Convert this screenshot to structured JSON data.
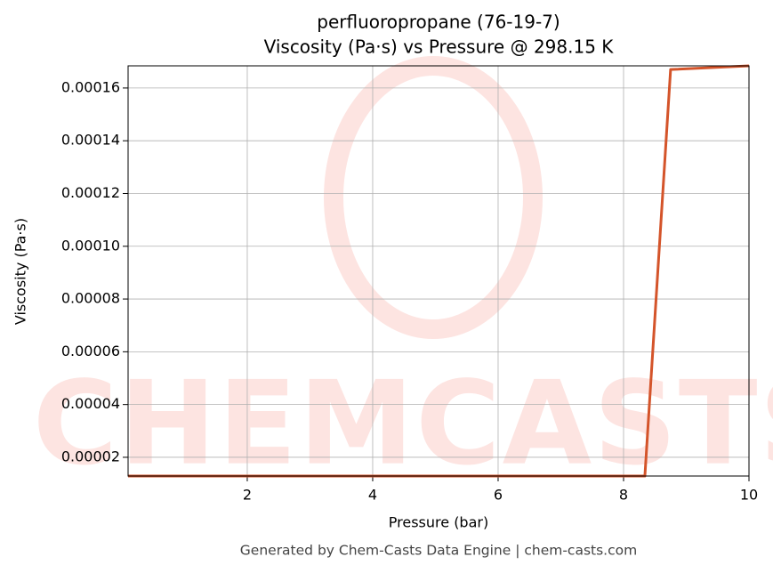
{
  "chart_data": {
    "type": "line",
    "title": "perfluoropropane (76-19-7)",
    "subtitle": "Viscosity (Pa·s) vs Pressure @ 298.15 K",
    "x_label": "Pressure (bar)",
    "y_label": "Viscosity (Pa·s)",
    "footer": "Generated by Chem-Casts Data Engine | chem-casts.com",
    "watermark": "CHEMCASTS",
    "x": [
      0.1,
      8.34,
      8.75,
      10
    ],
    "series": [
      {
        "name": "Viscosity",
        "color": "#d4542a",
        "values": [
          1.29e-05,
          1.29e-05,
          0.000167,
          0.0001684
        ]
      }
    ],
    "xlim": [
      0.1,
      10
    ],
    "ylim": [
      1.29e-05,
      0.0001684
    ],
    "xticks": [
      2,
      4,
      6,
      8,
      10
    ],
    "yticks": [
      2e-05,
      4e-05,
      6e-05,
      8e-05,
      {
        "value": 0.0001,
        "label": "0.00010"
      },
      0.00012,
      0.00014,
      0.00016
    ],
    "grid": true
  }
}
